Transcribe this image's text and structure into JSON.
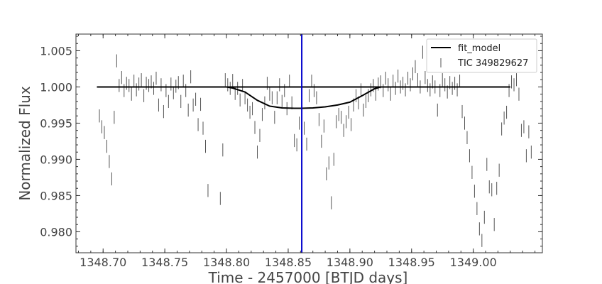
{
  "chart_data": {
    "type": "scatter",
    "title": "",
    "xlabel": "Time - 2457000 [BTJD days]",
    "ylabel": "Normalized Flux",
    "xlim": [
      1348.678,
      1349.056
    ],
    "ylim": [
      0.9771,
      1.0073
    ],
    "xticks": [
      1348.7,
      1348.75,
      1348.8,
      1348.85,
      1348.9,
      1348.95,
      1349.0
    ],
    "xtick_labels": [
      "1348.70",
      "1348.75",
      "1348.80",
      "1348.85",
      "1348.90",
      "1348.95",
      "1349.00"
    ],
    "yticks": [
      0.98,
      0.985,
      0.99,
      0.995,
      1.0,
      1.005
    ],
    "ytick_labels": [
      "0.980",
      "0.985",
      "0.990",
      "0.995",
      "1.000",
      "1.005"
    ],
    "grid": false,
    "legend_position": "top-right",
    "colors": {
      "model": "#000000",
      "data": "#555555",
      "vline": "#0000cc",
      "axis": "#333333"
    },
    "vline_x": 1348.861,
    "series": [
      {
        "name": "fit_model",
        "kind": "line",
        "x": [
          1348.695,
          1348.8,
          1348.805,
          1348.815,
          1348.825,
          1348.835,
          1348.845,
          1348.855,
          1348.861,
          1348.87,
          1348.88,
          1348.89,
          1348.9,
          1348.91,
          1348.92,
          1348.925,
          1349.03
        ],
        "y": [
          1.0,
          1.0,
          0.99985,
          0.9993,
          0.99815,
          0.99735,
          0.9971,
          0.99705,
          0.99705,
          0.9971,
          0.99725,
          0.9975,
          0.9979,
          0.9988,
          0.99975,
          1.0,
          1.0
        ]
      },
      {
        "name": "TIC 349829627",
        "kind": "errorbar",
        "err": 0.0009,
        "points": [
          [
            1348.697,
            0.996
          ],
          [
            1348.699,
            0.9945
          ],
          [
            1348.701,
            0.9937
          ],
          [
            1348.703,
            0.9918
          ],
          [
            1348.705,
            0.9897
          ],
          [
            1348.707,
            0.9873
          ],
          [
            1348.709,
            0.9958
          ],
          [
            1348.711,
            1.0036
          ],
          [
            1348.713,
            1.0002
          ],
          [
            1348.715,
            1.0013
          ],
          [
            1348.717,
            0.9995
          ],
          [
            1348.719,
            1.0005
          ],
          [
            1348.721,
            1.0002
          ],
          [
            1348.723,
            0.999
          ],
          [
            1348.725,
            1.0008
          ],
          [
            1348.727,
            0.9996
          ],
          [
            1348.729,
            1.0004
          ],
          [
            1348.731,
            1.001
          ],
          [
            1348.733,
            0.9988
          ],
          [
            1348.735,
            1.0005
          ],
          [
            1348.737,
            1.0002
          ],
          [
            1348.739,
            1.0007
          ],
          [
            1348.741,
            0.9998
          ],
          [
            1348.743,
            1.0012
          ],
          [
            1348.745,
            0.9975
          ],
          [
            1348.747,
            1.0003
          ],
          [
            1348.749,
            0.9966
          ],
          [
            1348.751,
            0.9995
          ],
          [
            1348.753,
            0.998
          ],
          [
            1348.755,
            1.0004
          ],
          [
            1348.757,
            0.9992
          ],
          [
            1348.759,
            1.0001
          ],
          [
            1348.761,
            1.0006
          ],
          [
            1348.763,
            0.998
          ],
          [
            1348.765,
            1.0008
          ],
          [
            1348.767,
            0.9995
          ],
          [
            1348.769,
            0.9968
          ],
          [
            1348.771,
            1.0014
          ],
          [
            1348.773,
            0.9975
          ],
          [
            1348.775,
            0.9983
          ],
          [
            1348.777,
            0.9948
          ],
          [
            1348.779,
            0.9976
          ],
          [
            1348.781,
            0.9943
          ],
          [
            1348.783,
            0.9918
          ],
          [
            1348.785,
            0.9857
          ],
          [
            1348.795,
            0.9846
          ],
          [
            1348.797,
            0.9913
          ],
          [
            1348.799,
            1.001
          ],
          [
            1348.801,
            1.0003
          ],
          [
            1348.803,
            0.9998
          ],
          [
            1348.805,
            1.0009
          ],
          [
            1348.807,
            0.9991
          ],
          [
            1348.809,
            0.9998
          ],
          [
            1348.811,
            0.9982
          ],
          [
            1348.813,
            1.0002
          ],
          [
            1348.815,
            0.9985
          ],
          [
            1348.817,
            0.9975
          ],
          [
            1348.819,
            0.9965
          ],
          [
            1348.821,
            0.997
          ],
          [
            1348.823,
            0.9944
          ],
          [
            1348.825,
            0.991
          ],
          [
            1348.827,
            0.9933
          ],
          [
            1348.829,
            0.9962
          ],
          [
            1348.831,
            0.9978
          ],
          [
            1348.833,
            1.0005
          ],
          [
            1348.835,
            0.999
          ],
          [
            1348.837,
            0.9985
          ],
          [
            1348.839,
            0.9958
          ],
          [
            1348.841,
            0.9985
          ],
          [
            1348.843,
            1.0003
          ],
          [
            1348.845,
            0.998
          ],
          [
            1348.847,
            0.9995
          ],
          [
            1348.849,
            0.997
          ],
          [
            1348.851,
            1.0008
          ],
          [
            1348.853,
            0.9978
          ],
          [
            1348.855,
            0.9926
          ],
          [
            1348.857,
            0.992
          ],
          [
            1348.859,
            0.995
          ],
          [
            1348.861,
            0.996
          ],
          [
            1348.863,
            0.9943
          ],
          [
            1348.865,
            0.9921
          ],
          [
            1348.867,
            0.9988
          ],
          [
            1348.869,
            1.0008
          ],
          [
            1348.871,
            0.9995
          ],
          [
            1348.873,
            0.9985
          ],
          [
            1348.875,
            0.9955
          ],
          [
            1348.877,
            0.9925
          ],
          [
            1348.879,
            0.9946
          ],
          [
            1348.881,
            0.988
          ],
          [
            1348.883,
            0.9895
          ],
          [
            1348.885,
            0.984
          ],
          [
            1348.887,
            0.99
          ],
          [
            1348.889,
            0.9952
          ],
          [
            1348.891,
            0.9962
          ],
          [
            1348.893,
            0.9958
          ],
          [
            1348.895,
            0.994
          ],
          [
            1348.897,
            0.9952
          ],
          [
            1348.899,
            0.9965
          ],
          [
            1348.901,
            0.9948
          ],
          [
            1348.903,
            0.9975
          ],
          [
            1348.905,
            0.9988
          ],
          [
            1348.907,
            0.9978
          ],
          [
            1348.909,
            0.9996
          ],
          [
            1348.911,
            0.9968
          ],
          [
            1348.913,
            0.998
          ],
          [
            1348.915,
            0.9988
          ],
          [
            1348.917,
            0.9996
          ],
          [
            1348.919,
            1.0002
          ],
          [
            1348.921,
            0.999
          ],
          [
            1348.923,
            1.0004
          ],
          [
            1348.925,
            1.0007
          ],
          [
            1348.927,
            0.9995
          ],
          [
            1348.929,
            1.0012
          ],
          [
            1348.931,
            1.0003
          ],
          [
            1348.933,
            0.999
          ],
          [
            1348.935,
            1.0008
          ],
          [
            1348.937,
            0.9998
          ],
          [
            1348.939,
            1.0015
          ],
          [
            1348.941,
            1.0
          ],
          [
            1348.943,
            1.0005
          ],
          [
            1348.945,
            0.9996
          ],
          [
            1348.947,
            1.0012
          ],
          [
            1348.949,
            1.0003
          ],
          [
            1348.951,
            1.0018
          ],
          [
            1348.953,
            1.0028
          ],
          [
            1348.955,
            1.001
          ],
          [
            1348.957,
            1.0
          ],
          [
            1348.959,
            1.0048
          ],
          [
            1348.961,
            1.0013
          ],
          [
            1348.963,
            1.0002
          ],
          [
            1348.965,
            0.9996
          ],
          [
            1348.967,
            1.0007
          ],
          [
            1348.969,
            1.0
          ],
          [
            1348.971,
            0.9968
          ],
          [
            1348.973,
            0.9995
          ],
          [
            1348.975,
            1.001
          ],
          [
            1348.977,
            1.0003
          ],
          [
            1348.979,
            0.9993
          ],
          [
            1348.981,
            1.0006
          ],
          [
            1348.983,
            0.9998
          ],
          [
            1348.985,
            1.0005
          ],
          [
            1348.987,
            0.9996
          ],
          [
            1348.989,
            1.0008
          ],
          [
            1348.991,
            0.9966
          ],
          [
            1348.993,
            0.995
          ],
          [
            1348.995,
            0.993
          ],
          [
            1348.997,
            0.9905
          ],
          [
            1348.999,
            0.9882
          ],
          [
            1349.001,
            0.9856
          ],
          [
            1349.003,
            0.9832
          ],
          [
            1349.005,
            0.9804
          ],
          [
            1349.007,
            0.9788
          ],
          [
            1349.009,
            0.982
          ],
          [
            1349.011,
            0.9893
          ],
          [
            1349.013,
            0.9862
          ],
          [
            1349.015,
            0.9858
          ],
          [
            1349.017,
            0.981
          ],
          [
            1349.019,
            0.986
          ],
          [
            1349.021,
            0.9885
          ],
          [
            1349.023,
            0.9942
          ],
          [
            1349.025,
            0.9957
          ],
          [
            1349.027,
            0.9965
          ],
          [
            1349.029,
            0.9995
          ],
          [
            1349.031,
            1.0007
          ],
          [
            1349.033,
            1.0003
          ],
          [
            1349.035,
            1.001
          ],
          [
            1349.037,
            0.999
          ],
          [
            1349.039,
            0.994
          ],
          [
            1349.041,
            0.9945
          ],
          [
            1349.043,
            0.9905
          ],
          [
            1349.045,
            0.9938
          ],
          [
            1349.047,
            0.991
          ]
        ]
      }
    ]
  }
}
